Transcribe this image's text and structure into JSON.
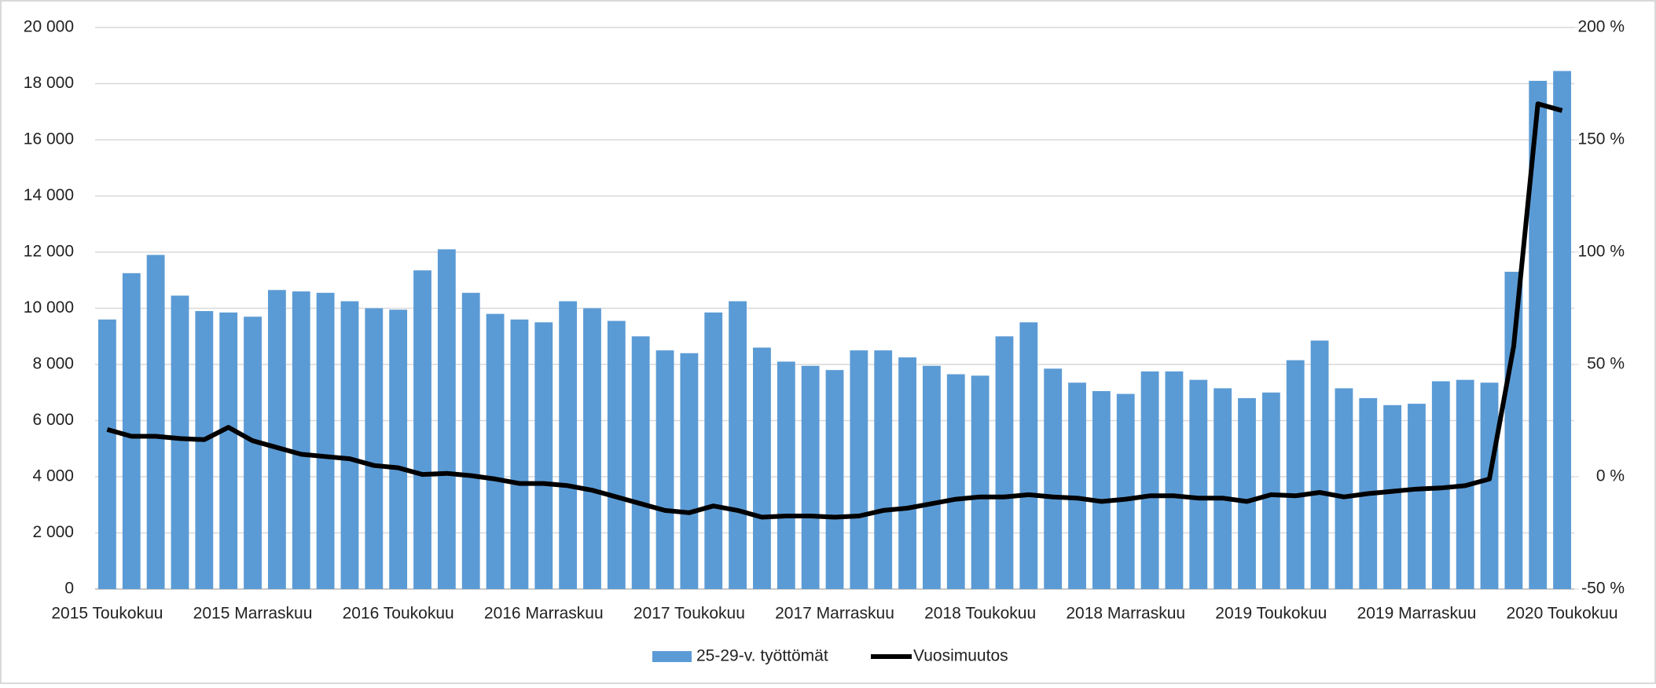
{
  "chart_data": {
    "type": "bar_line",
    "categories": [
      "2015 Toukokuu",
      null,
      null,
      null,
      null,
      null,
      "2015 Marraskuu",
      null,
      null,
      null,
      null,
      null,
      "2016 Toukokuu",
      null,
      null,
      null,
      null,
      null,
      "2016 Marraskuu",
      null,
      null,
      null,
      null,
      null,
      "2017 Toukokuu",
      null,
      null,
      null,
      null,
      null,
      "2017 Marraskuu",
      null,
      null,
      null,
      null,
      null,
      "2018 Toukokuu",
      null,
      null,
      null,
      null,
      null,
      "2018 Marraskuu",
      null,
      null,
      null,
      null,
      null,
      "2019 Toukokuu",
      null,
      null,
      null,
      null,
      null,
      "2019 Marraskuu",
      null,
      null,
      null,
      null,
      null,
      "2020 Toukokuu"
    ],
    "series": [
      {
        "name": "25-29-v. työttömät",
        "type": "bar",
        "color": "#5b9bd5",
        "values": [
          9600,
          11250,
          11900,
          10450,
          9900,
          9850,
          9700,
          10650,
          10600,
          10550,
          10250,
          10000,
          9950,
          11350,
          12100,
          10550,
          9800,
          9600,
          9500,
          10250,
          10000,
          9550,
          9000,
          8500,
          8400,
          9850,
          10250,
          8600,
          8100,
          7950,
          7800,
          8500,
          8500,
          8250,
          7950,
          7650,
          7600,
          9000,
          9500,
          7850,
          7350,
          7050,
          6950,
          7750,
          7750,
          7450,
          7150,
          6800,
          7000,
          8150,
          8850,
          7150,
          6800,
          6550,
          6600,
          7400,
          7450,
          7350,
          11300,
          18100,
          18450
        ]
      },
      {
        "name": "Vuosimuutos",
        "type": "line",
        "axis": "y2",
        "color": "#000000",
        "values": [
          21,
          18,
          18,
          17,
          16.5,
          22,
          16,
          13,
          10,
          9,
          8,
          5,
          4,
          1,
          1.5,
          0.5,
          -1,
          -3,
          -3,
          -4,
          -6,
          -9,
          -12,
          -15,
          -16,
          -13,
          -15,
          -18,
          -17.5,
          -17.5,
          -18,
          -17.5,
          -15,
          -14,
          -12,
          -10,
          -9,
          -9,
          -8,
          -9,
          -9.5,
          -11,
          -10,
          -8.5,
          -8.5,
          -9.5,
          -9.5,
          -11,
          -8,
          -8.5,
          -7,
          -9,
          -7.5,
          -6.5,
          -5.5,
          -5,
          -4,
          -1,
          58,
          166,
          163
        ]
      }
    ],
    "ylim": [
      0,
      20000
    ],
    "yticks": [
      0,
      {
        "value": 2000,
        "label": "2 000"
      },
      {
        "value": 4000,
        "label": "4 000"
      },
      {
        "value": 6000,
        "label": "6 000"
      },
      {
        "value": 8000,
        "label": "8 000"
      },
      {
        "value": 10000,
        "label": "10 000"
      },
      {
        "value": 12000,
        "label": "12 000"
      },
      {
        "value": 14000,
        "label": "14 000"
      },
      {
        "value": 16000,
        "label": "16 000"
      },
      {
        "value": 18000,
        "label": "18 000"
      },
      {
        "value": 20000,
        "label": "20 000"
      }
    ],
    "y2lim": [
      -50,
      200
    ],
    "y2ticks": [
      {
        "value": -50,
        "label": "-50 %"
      },
      {
        "value": 0,
        "label": "0 %"
      },
      {
        "value": 50,
        "label": "50 %"
      },
      {
        "value": 100,
        "label": "100 %"
      },
      {
        "value": 150,
        "label": "150 %"
      },
      {
        "value": 200,
        "label": "200 %"
      }
    ],
    "grid": true,
    "legend": "bottom"
  }
}
